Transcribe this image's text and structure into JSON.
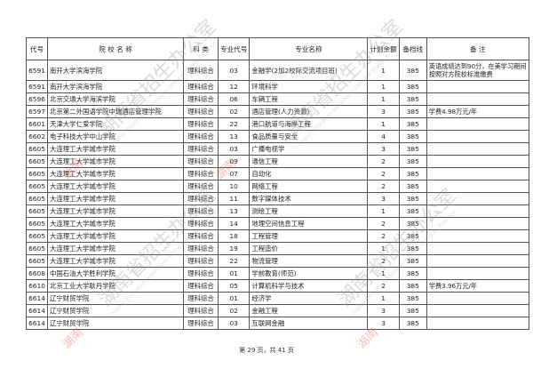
{
  "headers": {
    "code": "代号",
    "school": "院 校 名 称",
    "category": "科 类",
    "major_code": "专业代号",
    "major": "专业名称",
    "remaining": "计划余额",
    "line": "备档线",
    "note": "备 注"
  },
  "rows": [
    {
      "code": "6591",
      "school": "南开大学滨海学院",
      "category": "理科综合",
      "major_code": "03",
      "major": "金融学(2加2校际交流项目班)",
      "remaining": "1",
      "line": "385",
      "note": "英语成绩达到90分，在美学习期间按照对方院校标准缴费"
    },
    {
      "code": "6591",
      "school": "南开大学滨海学院",
      "category": "理科综合",
      "major_code": "12",
      "major": "环境科学",
      "remaining": "1",
      "line": "385",
      "note": ""
    },
    {
      "code": "6596",
      "school": "北京交通大学海滨学院",
      "category": "理科综合",
      "major_code": "06",
      "major": "车辆工程",
      "remaining": "1",
      "line": "385",
      "note": ""
    },
    {
      "code": "6597",
      "school": "北京第二外国语学院中瑞酒店管理学院",
      "category": "理科综合",
      "major_code": "02",
      "major": "酒店管理(人力资源)",
      "remaining": "3",
      "line": "385",
      "note": "学费4.98万元/年"
    },
    {
      "code": "6601",
      "school": "天津大学仁爱学院",
      "category": "理科综合",
      "major_code": "22",
      "major": "港口航道与海岸工程",
      "remaining": "1",
      "line": "385",
      "note": ""
    },
    {
      "code": "6602",
      "school": "电子科技大学中山学院",
      "category": "理科综合",
      "major_code": "13",
      "major": "食品质量与安全",
      "remaining": "4",
      "line": "385",
      "note": ""
    },
    {
      "code": "6605",
      "school": "大连理工大学城市学院",
      "category": "理科综合",
      "major_code": "03",
      "major": "广播电视学",
      "remaining": "3",
      "line": "385",
      "note": ""
    },
    {
      "code": "6605",
      "school": "大连理工大学城市学院",
      "category": "理科综合",
      "major_code": "09",
      "major": "通信工程",
      "remaining": "2",
      "line": "385",
      "note": ""
    },
    {
      "code": "6605",
      "school": "大连理工大学城市学院",
      "category": "理科综合",
      "major_code": "07",
      "major": "自动化",
      "remaining": "2",
      "line": "385",
      "note": ""
    },
    {
      "code": "6605",
      "school": "大连理工大学城市学院",
      "category": "理科综合",
      "major_code": "10",
      "major": "网络工程",
      "remaining": "2",
      "line": "385",
      "note": ""
    },
    {
      "code": "6605",
      "school": "大连理工大学城市学院",
      "category": "理科综合",
      "major_code": "11",
      "major": "数字媒体技术",
      "remaining": "3",
      "line": "385",
      "note": ""
    },
    {
      "code": "6605",
      "school": "大连理工大学城市学院",
      "category": "理科综合",
      "major_code": "13",
      "major": "测绘工程",
      "remaining": "1",
      "line": "385",
      "note": ""
    },
    {
      "code": "6605",
      "school": "大连理工大学城市学院",
      "category": "理科综合",
      "major_code": "14",
      "major": "地理空间信息工程",
      "remaining": "2",
      "line": "385",
      "note": ""
    },
    {
      "code": "6605",
      "school": "大连理工大学城市学院",
      "category": "理科综合",
      "major_code": "18",
      "major": "工程管理",
      "remaining": "2",
      "line": "385",
      "note": ""
    },
    {
      "code": "6605",
      "school": "大连理工大学城市学院",
      "category": "理科综合",
      "major_code": "19",
      "major": "工程造价",
      "remaining": "1",
      "line": "385",
      "note": ""
    },
    {
      "code": "6605",
      "school": "大连理工大学城市学院",
      "category": "理科综合",
      "major_code": "22",
      "major": "物流管理",
      "remaining": "2",
      "line": "385",
      "note": ""
    },
    {
      "code": "6608",
      "school": "中国石油大学胜利学院",
      "category": "理科综合",
      "major_code": "01",
      "major": "学前教育(师范)",
      "remaining": "1",
      "line": "385",
      "note": ""
    },
    {
      "code": "6610",
      "school": "北京工业大学耿丹学院",
      "category": "理科综合",
      "major_code": "05",
      "major": "计算机科学与技术",
      "remaining": "2",
      "line": "385",
      "note": "学费3.96万元/年"
    },
    {
      "code": "6614",
      "school": "辽宁财贸学院",
      "category": "理科综合",
      "major_code": "01",
      "major": "经济学",
      "remaining": "1",
      "line": "385",
      "note": ""
    },
    {
      "code": "6614",
      "school": "辽宁财贸学院",
      "category": "理科综合",
      "major_code": "02",
      "major": "金融工程",
      "remaining": "3",
      "line": "385",
      "note": ""
    },
    {
      "code": "6614",
      "school": "辽宁财贸学院",
      "category": "理科综合",
      "major_code": "03",
      "major": "互联网金融",
      "remaining": "3",
      "line": "385",
      "note": ""
    }
  ],
  "footer": "第 29 页，共 41 页",
  "watermark": {
    "cn": "湖南省招生办公室",
    "en": "Higher Education Admissions Office of Hunan Province",
    "stamp": "湖南"
  }
}
